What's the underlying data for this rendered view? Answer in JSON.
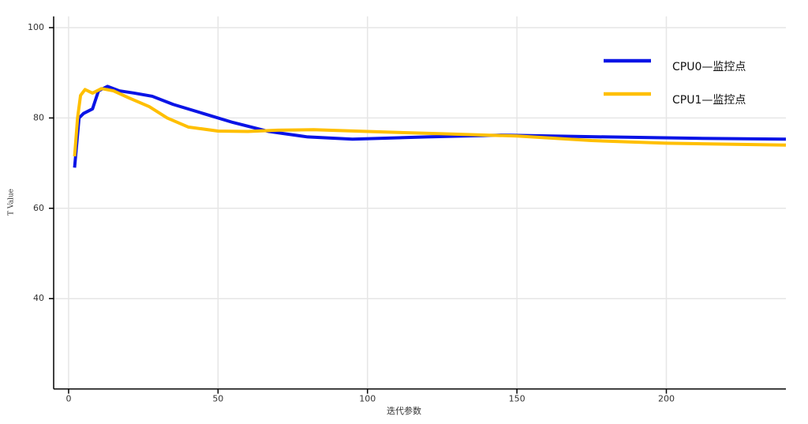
{
  "chart_data": {
    "type": "line",
    "x_label": "迭代参数",
    "y_label": "T Value",
    "xlim": [
      -5,
      240
    ],
    "ylim": [
      20,
      102.5
    ],
    "xticks": [
      0,
      50,
      100,
      150,
      200
    ],
    "yticks": [
      40,
      60,
      80,
      100
    ],
    "grid": true,
    "legend": "upper right",
    "series": [
      {
        "name": "CPU0—监控点",
        "color": "#0a14e6",
        "x": [
          2,
          3.5,
          5,
          8,
          10,
          13,
          17,
          22,
          28,
          35,
          45,
          55,
          67,
          80,
          95,
          120,
          145,
          180,
          210,
          240
        ],
        "values": [
          69,
          80,
          81,
          82,
          86,
          87,
          86,
          85.5,
          84.8,
          83,
          81,
          79,
          77,
          75.8,
          75.3,
          75.8,
          76.2,
          75.8,
          75.5,
          75.3
        ]
      },
      {
        "name": "CPU1—监控点",
        "color": "#ffbf00",
        "x": [
          2,
          3,
          4,
          5.5,
          8,
          11,
          15,
          20,
          27,
          33,
          40,
          50,
          60,
          70,
          82,
          100,
          125,
          150,
          175,
          200,
          240
        ],
        "values": [
          71.5,
          80,
          85,
          86.3,
          85.5,
          86.5,
          86,
          84.5,
          82.5,
          80,
          78,
          77.1,
          77,
          77.3,
          77.4,
          77,
          76.5,
          76,
          75,
          74.4,
          74
        ]
      }
    ]
  }
}
